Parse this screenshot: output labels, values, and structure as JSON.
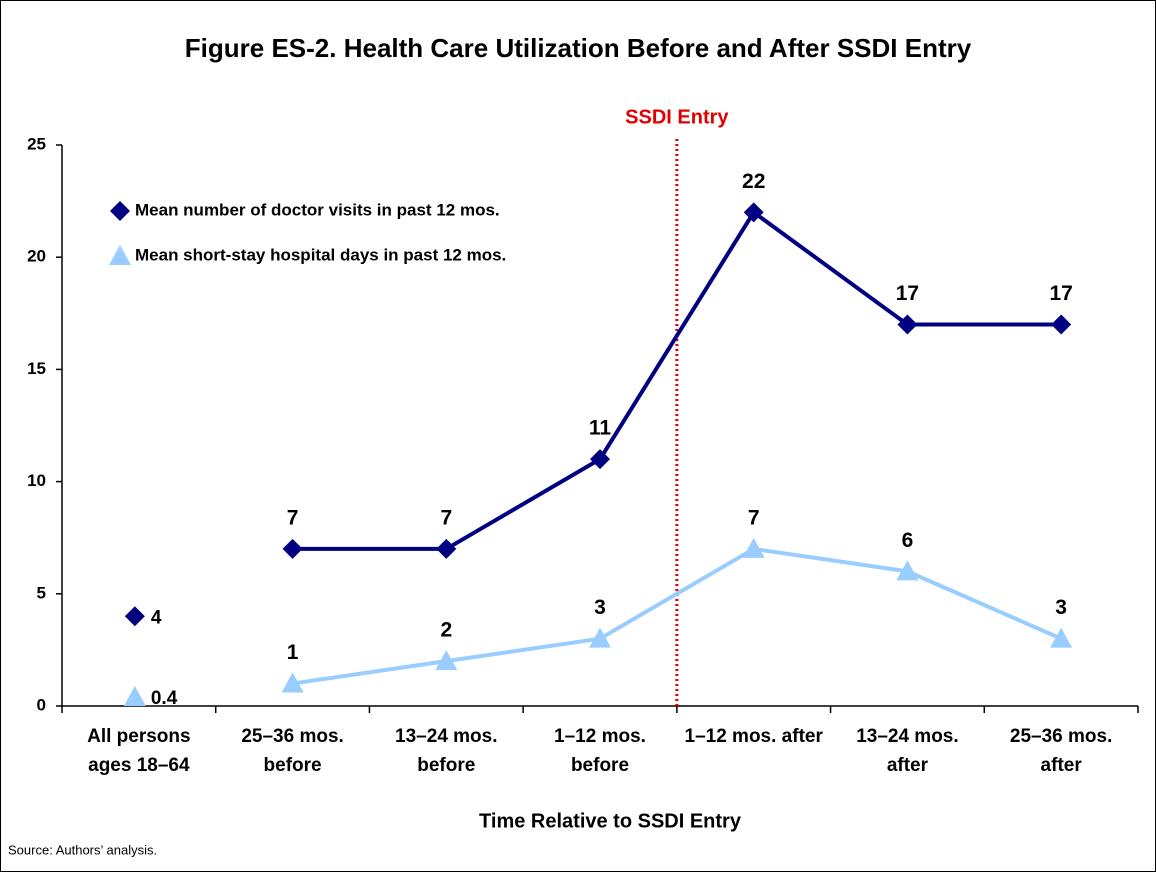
{
  "chart_data": {
    "type": "line",
    "title": "Figure ES-2. Health Care Utilization Before and After SSDI Entry",
    "x_label": "Time Relative to SSDI Entry",
    "annotation": "SSDI Entry",
    "annotation_color": "#e00000",
    "source": "Source: Authors’ analysis.",
    "categories": [
      "All persons ages 18–64",
      "25–36 mos. before",
      "13–24 mos. before",
      "1–12 mos. before",
      "1–12 mos. after",
      "13–24 mos. after",
      "25–36 mos. after"
    ],
    "series": [
      {
        "name": "Mean number of doctor visits in past 12 mos.",
        "color": "#000080",
        "marker": "diamond",
        "values": [
          4,
          7,
          7,
          11,
          22,
          17,
          17
        ]
      },
      {
        "name": "Mean short-stay hospital days in past 12 mos.",
        "color": "#99ccff",
        "marker": "triangle",
        "values": [
          0.4,
          1,
          2,
          3,
          7,
          6,
          3
        ]
      }
    ],
    "ylim": [
      0,
      25
    ],
    "yticks": [
      0,
      5,
      10,
      15,
      20,
      25
    ],
    "grid": false,
    "legend": "upper left"
  }
}
